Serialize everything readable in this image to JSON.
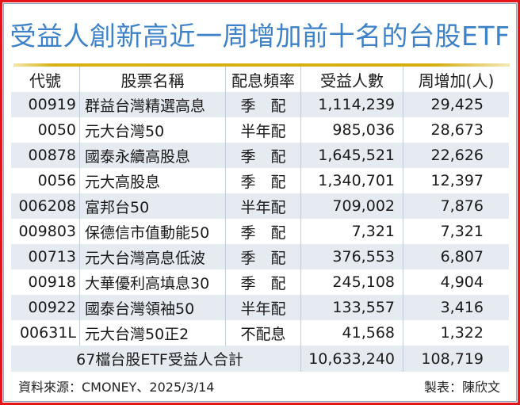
{
  "title": "受益人創新高近一周增加前十名的台股ETF",
  "table": {
    "headers": [
      "代號",
      "股票名稱",
      "配息頻率",
      "受益人數",
      "周增加(人)"
    ],
    "rows": [
      {
        "code": "00919",
        "name": "群益台灣精選高息",
        "freq": "季　配",
        "holders": "1,114,239",
        "increase": "29,425"
      },
      {
        "code": "0050",
        "name": "元大台灣50",
        "freq": "半年配",
        "holders": "985,036",
        "increase": "28,673"
      },
      {
        "code": "00878",
        "name": "國泰永續高股息",
        "freq": "季　配",
        "holders": "1,645,521",
        "increase": "22,626"
      },
      {
        "code": "0056",
        "name": "元大高股息",
        "freq": "季　配",
        "holders": "1,340,701",
        "increase": "12,397"
      },
      {
        "code": "006208",
        "name": "富邦台50",
        "freq": "半年配",
        "holders": "709,002",
        "increase": "7,876"
      },
      {
        "code": "009803",
        "name": "保德信市值動能50",
        "freq": "季　配",
        "holders": "7,321",
        "increase": "7,321"
      },
      {
        "code": "00713",
        "name": "元大台灣高息低波",
        "freq": "季　配",
        "holders": "376,553",
        "increase": "6,807"
      },
      {
        "code": "00918",
        "name": "大華優利高填息30",
        "freq": "季　配",
        "holders": "245,108",
        "increase": "4,904"
      },
      {
        "code": "00922",
        "name": "國泰台灣領袖50",
        "freq": "半年配",
        "holders": "133,557",
        "increase": "3,416"
      },
      {
        "code": "00631L",
        "name": "元大台灣50正2",
        "freq": "不配息",
        "holders": "41,568",
        "increase": "1,322"
      }
    ],
    "total": {
      "label": "67檔台股ETF受益人合計",
      "holders": "10,633,240",
      "increase": "108,719"
    }
  },
  "footer": {
    "source": "資料來源：CMONEY、2025/3/14",
    "author": "製表：陳欣文"
  },
  "colors": {
    "border": "#e4141b",
    "title": "#3d82c8",
    "gold_rule": "#d6ae10",
    "row_stripe": "#e6ebf2"
  }
}
